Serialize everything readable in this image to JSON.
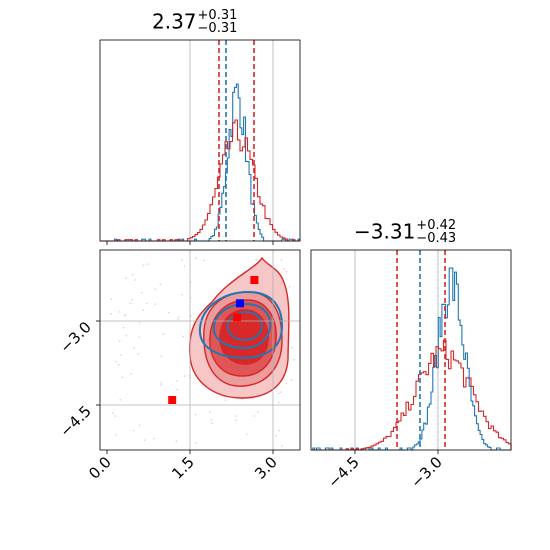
{
  "colors": {
    "truth": "#1f77b4",
    "fit": "#d62728",
    "grid": "#b0b0b0",
    "point_red": "#ff0000",
    "point_blue": "#0000ff"
  },
  "titles": {
    "param1": {
      "value": "2.37",
      "plus": "+0.31",
      "minus": "−0.31"
    },
    "param2": {
      "value": "−3.31",
      "plus": "+0.42",
      "minus": "−0.43"
    }
  },
  "chart_data": [
    {
      "type": "histogram",
      "panel": "top-left marginal",
      "title": "2.37 +0.31 −0.31",
      "xlim": [
        -0.1,
        3.5
      ],
      "xticks": [
        0.0,
        1.5,
        3.0
      ],
      "grid": true,
      "series": [
        {
          "color": "blue",
          "center": 2.37,
          "width": 0.17,
          "quantile_lines": [
            2.19
          ]
        },
        {
          "color": "red",
          "center": 2.37,
          "width": 0.31,
          "quantile_lines": [
            2.06,
            2.68
          ]
        }
      ]
    },
    {
      "type": "contour",
      "panel": "bottom-left joint",
      "xlim": [
        -0.1,
        3.5
      ],
      "ylim": [
        -5.3,
        -2.3
      ],
      "xticks": [
        0.0,
        1.5,
        3.0
      ],
      "xtick_labels": [
        "0.0",
        "1.5",
        "3.0"
      ],
      "yticks": [
        -3.0,
        -4.5
      ],
      "ytick_labels": [
        "−3.0",
        "−4.5"
      ],
      "grid": true,
      "points": [
        {
          "x": 2.42,
          "y": -3.1,
          "color": "blue"
        },
        {
          "x": 2.68,
          "y": -2.75,
          "color": "red"
        },
        {
          "x": 2.37,
          "y": -3.31,
          "color": "red"
        },
        {
          "x": 1.2,
          "y": -4.55,
          "color": "red"
        }
      ]
    },
    {
      "type": "histogram",
      "panel": "bottom-right marginal",
      "title": "−3.31 +0.42 −0.43",
      "xlim": [
        -5.3,
        -2.3
      ],
      "xticks": [
        -4.5,
        -3.0
      ],
      "xtick_labels": [
        "−4.5",
        "−3.0"
      ],
      "grid": true,
      "series": [
        {
          "color": "blue",
          "center": -3.2,
          "width": 0.2,
          "quantile_lines": [
            -3.34
          ]
        },
        {
          "color": "red",
          "center": -3.31,
          "width": 0.42,
          "quantile_lines": [
            -3.74,
            -2.89
          ]
        }
      ]
    }
  ]
}
